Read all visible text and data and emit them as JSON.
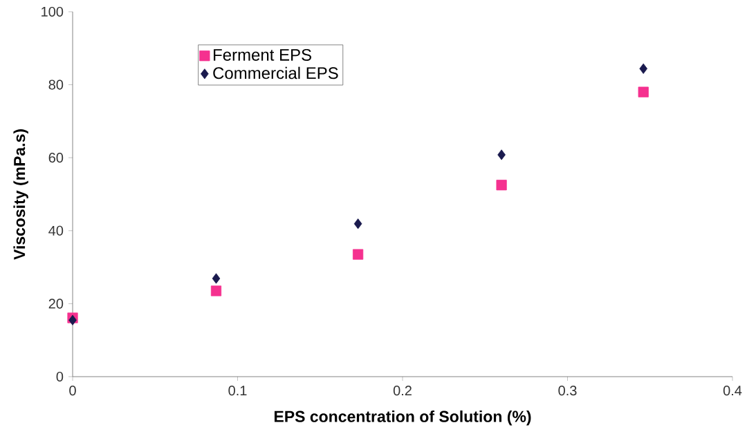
{
  "chart_data": {
    "type": "scatter",
    "xlabel": "EPS concentration of Solution (%)",
    "ylabel": "Viscosity (mPa.s)",
    "x": [
      0,
      0.087,
      0.173,
      0.26,
      0.346
    ],
    "series": [
      {
        "name": "Ferment EPS",
        "color": "#f5318f",
        "marker": "square",
        "values": [
          16.1,
          23.5,
          33.5,
          52.5,
          78.0
        ]
      },
      {
        "name": "Commercial EPS",
        "color": "#1a1a4e",
        "marker": "diamond",
        "values": [
          15.5,
          26.9,
          41.9,
          60.8,
          84.4
        ]
      }
    ],
    "xlim": [
      0,
      0.4
    ],
    "xticks": [
      0,
      0.1,
      0.2,
      0.3,
      0.4
    ],
    "ylim": [
      0,
      100
    ],
    "yticks": [
      0,
      20,
      40,
      60,
      80,
      100
    ],
    "grid": false,
    "legend": "top left"
  }
}
